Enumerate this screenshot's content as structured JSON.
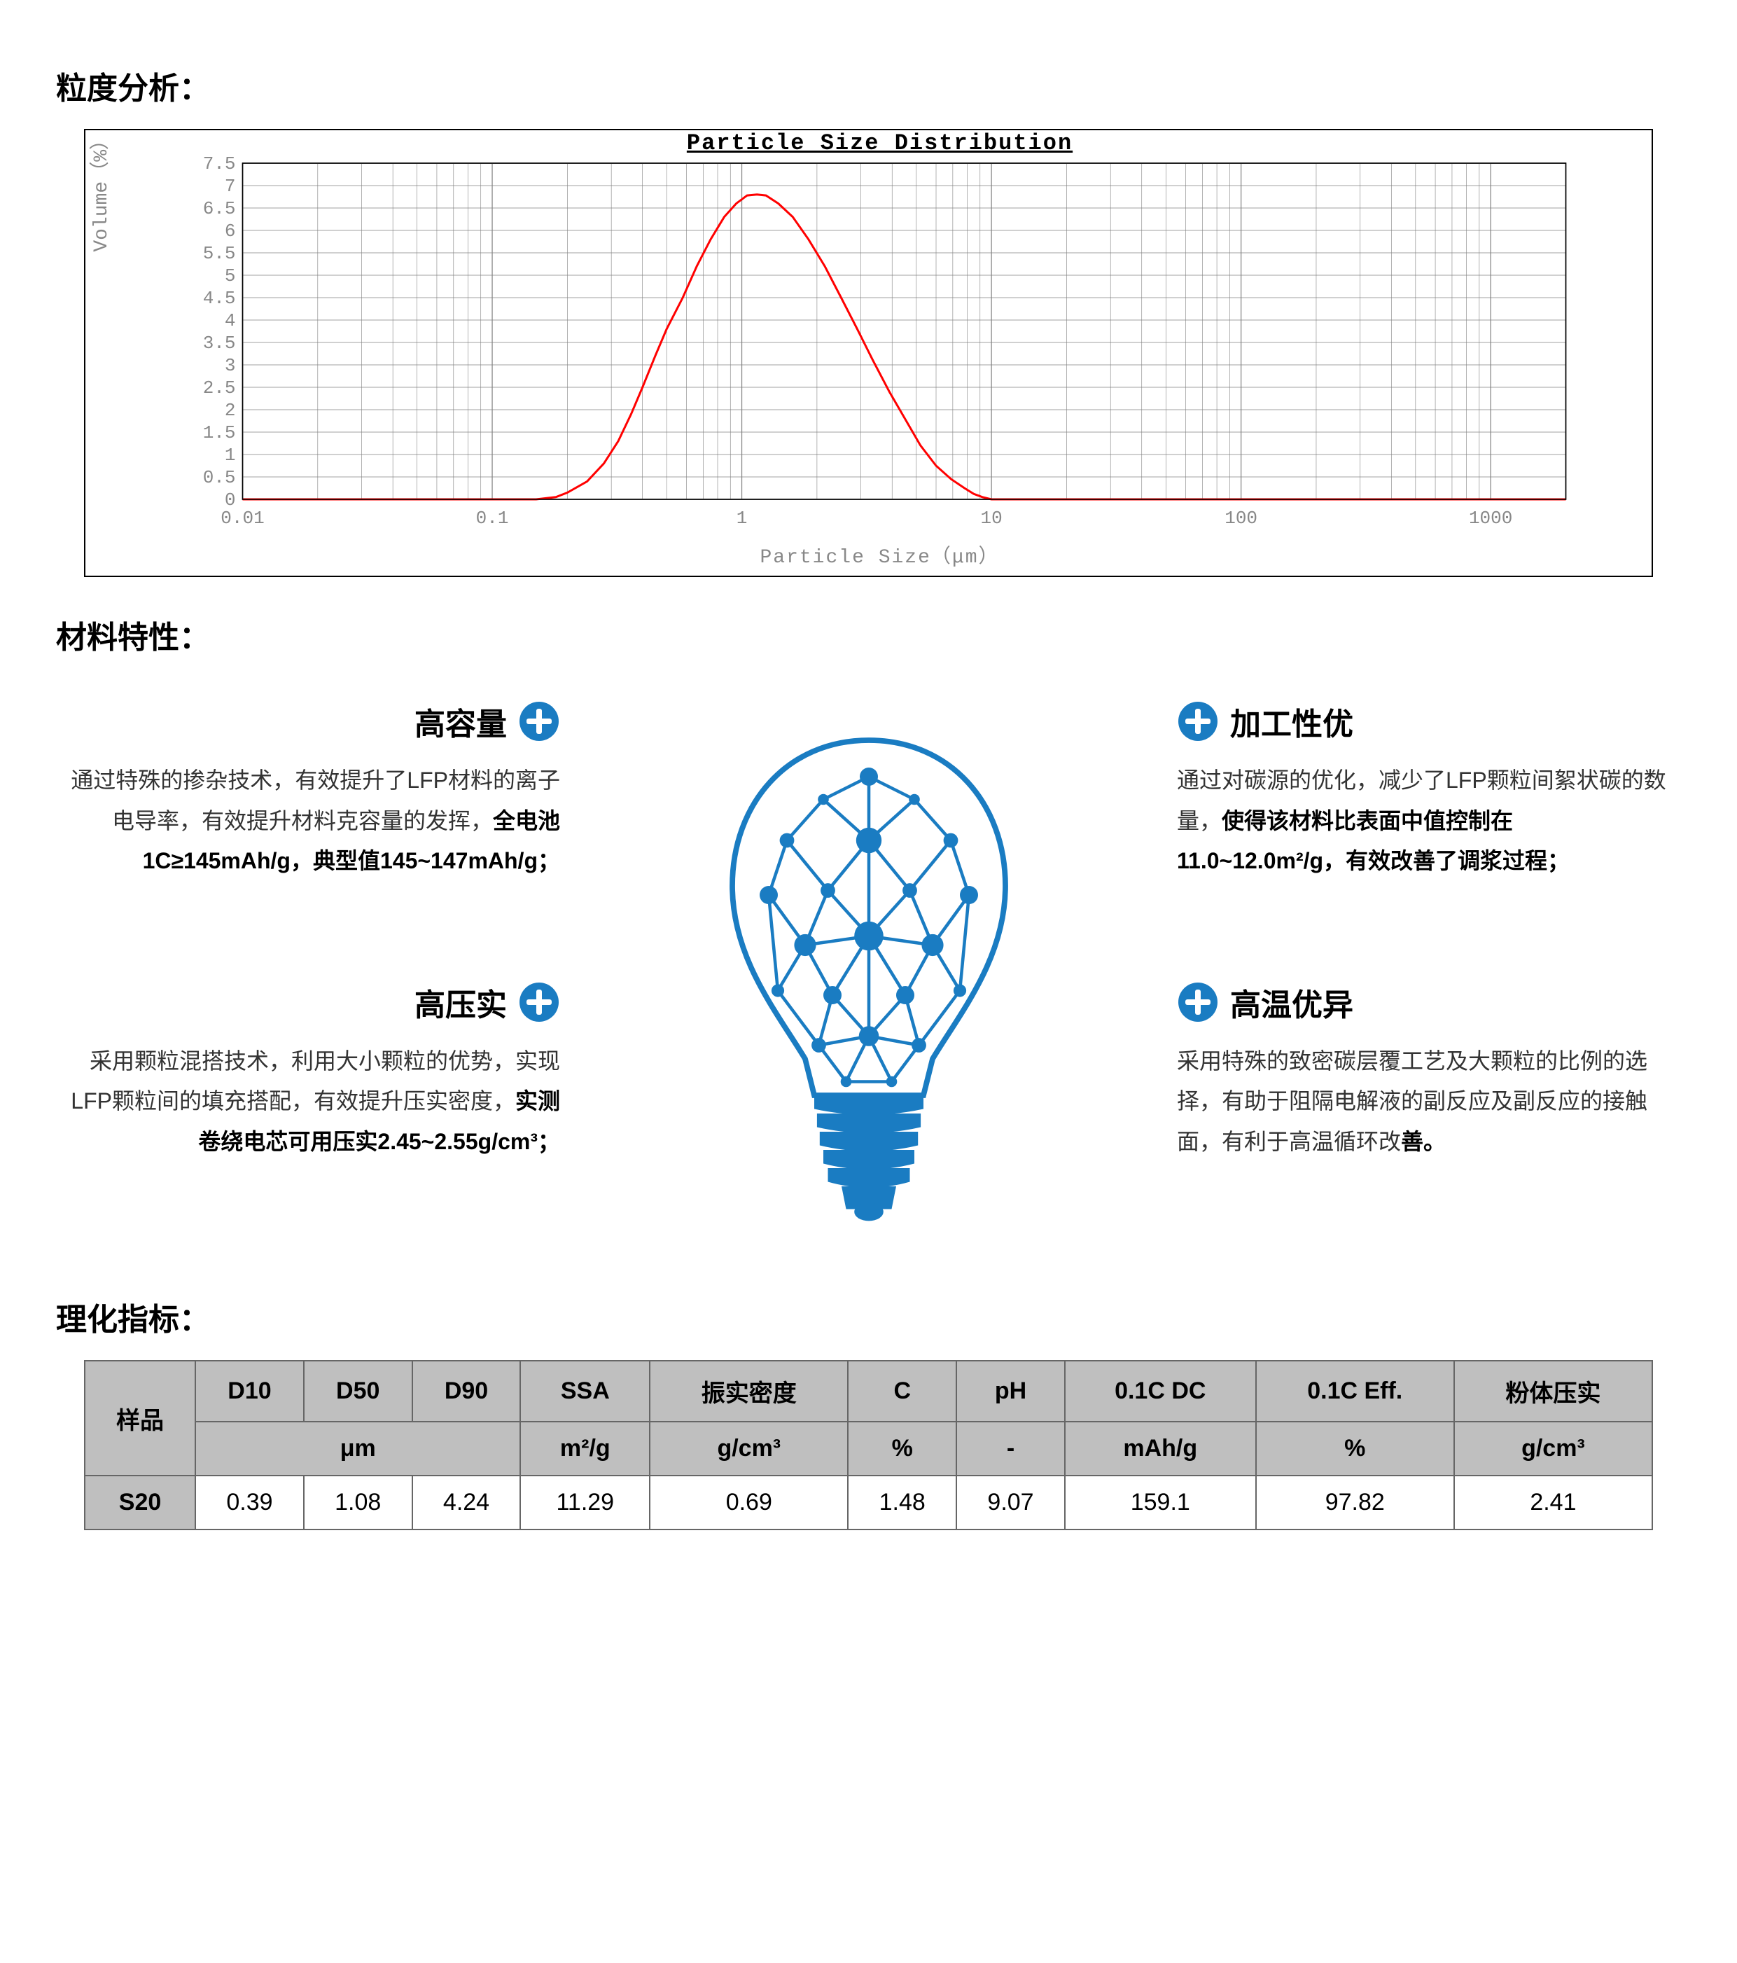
{
  "sections": {
    "particle_analysis_title": "粒度分析：",
    "material_props_title": "材料特性：",
    "specs_title": "理化指标："
  },
  "chart": {
    "type": "line",
    "title": "Particle Size Distribution",
    "xlabel": "Particle Size（μm）",
    "ylabel": "Volume（%）",
    "xscale": "log",
    "yscale": "linear",
    "xlim": [
      0.01,
      2000
    ],
    "ylim": [
      0,
      7.5
    ],
    "ytick_step": 0.5,
    "yticks": [
      "0",
      "0.5",
      "1",
      "1.5",
      "2",
      "2.5",
      "3",
      "3.5",
      "4",
      "4.5",
      "5",
      "5.5",
      "6",
      "6.5",
      "7",
      "7.5"
    ],
    "xticks_major": [
      "0.01",
      "0.1",
      "1",
      "10",
      "100",
      "1000"
    ],
    "line_color": "#ff0000",
    "line_width": 3,
    "background_color": "#ffffff",
    "grid_color": "#808080",
    "tick_font_color": "#888888",
    "tick_fontsize": 26,
    "data_points": [
      [
        0.01,
        0
      ],
      [
        0.1,
        0
      ],
      [
        0.15,
        0
      ],
      [
        0.18,
        0.05
      ],
      [
        0.2,
        0.15
      ],
      [
        0.24,
        0.4
      ],
      [
        0.28,
        0.8
      ],
      [
        0.32,
        1.3
      ],
      [
        0.36,
        1.9
      ],
      [
        0.4,
        2.5
      ],
      [
        0.45,
        3.2
      ],
      [
        0.5,
        3.8
      ],
      [
        0.58,
        4.5
      ],
      [
        0.66,
        5.2
      ],
      [
        0.75,
        5.8
      ],
      [
        0.85,
        6.3
      ],
      [
        0.95,
        6.6
      ],
      [
        1.05,
        6.78
      ],
      [
        1.15,
        6.8
      ],
      [
        1.25,
        6.78
      ],
      [
        1.4,
        6.6
      ],
      [
        1.6,
        6.3
      ],
      [
        1.85,
        5.8
      ],
      [
        2.15,
        5.2
      ],
      [
        2.5,
        4.5
      ],
      [
        2.9,
        3.8
      ],
      [
        3.35,
        3.1
      ],
      [
        3.9,
        2.4
      ],
      [
        4.5,
        1.8
      ],
      [
        5.2,
        1.2
      ],
      [
        6.0,
        0.75
      ],
      [
        6.9,
        0.45
      ],
      [
        7.8,
        0.25
      ],
      [
        8.5,
        0.12
      ],
      [
        9.2,
        0.05
      ],
      [
        10,
        0
      ],
      [
        15,
        0
      ],
      [
        2000,
        0
      ]
    ]
  },
  "features": {
    "plus_color": "#1a7cc2",
    "bulb_color": "#1a7cc2",
    "items": [
      {
        "title": "高容量",
        "side": "left",
        "body_pre": "通过特殊的掺杂技术，有效提升了LFP材料的离子电导率，有效提升材料克容量的发挥，",
        "body_bold": "全电池1C≥145mAh/g，典型值145~147mAh/g；"
      },
      {
        "title": "高压实",
        "side": "left",
        "body_pre": "采用颗粒混搭技术，利用大小颗粒的优势，实现LFP颗粒间的填充搭配，有效提升压实密度，",
        "body_bold": "实测卷绕电芯可用压实2.45~2.55g/cm³；"
      },
      {
        "title": "加工性优",
        "side": "right",
        "body_pre": "通过对碳源的优化，减少了LFP颗粒间絮状碳的数量，",
        "body_bold": "使得该材料比表面中值控制在11.0~12.0m²/g，有效改善了调浆过程；"
      },
      {
        "title": "高温优异",
        "side": "right",
        "body_pre": "采用特殊的致密碳层覆工艺及大颗粒的比例的选择，有助于阻隔电解液的副反应及副反应的接触面，有利于高温循环改",
        "body_bold": "善。"
      }
    ]
  },
  "table": {
    "header_bg": "#bfbfbf",
    "border_color": "#666666",
    "sample_label": "样品",
    "columns": [
      "D10",
      "D50",
      "D90",
      "SSA",
      "振实密度",
      "C",
      "pH",
      "0.1C DC",
      "0.1C Eff.",
      "粉体压实"
    ],
    "units_span1": "μm",
    "units": [
      "m²/g",
      "g/cm³",
      "%",
      "-",
      "mAh/g",
      "%",
      "g/cm³"
    ],
    "rows": [
      {
        "label": "S20",
        "values": [
          "0.39",
          "1.08",
          "4.24",
          "11.29",
          "0.69",
          "1.48",
          "9.07",
          "159.1",
          "97.82",
          "2.41"
        ]
      }
    ]
  }
}
